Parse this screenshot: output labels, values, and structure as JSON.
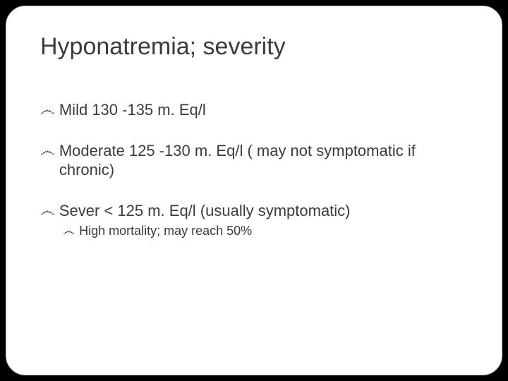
{
  "slide": {
    "title": "Hyponatremia; severity",
    "bullet_glyph": "෴",
    "background_color": "#000000",
    "frame_border_color": "#c9c5b8",
    "text_color": "#3b3b3b",
    "title_fontsize": 34,
    "body_fontsize": 22,
    "sub_fontsize": 18,
    "items": {
      "mild": "Mild 130 -135 m. Eq/l",
      "moderate_line1": "Moderate 125 -130 m. Eq/l ( may not symptomatic if",
      "moderate_line2": "chronic)",
      "severe": "Sever < 125 m. Eq/l (usually symptomatic)",
      "severe_sub": "High mortality; may reach 50%"
    }
  }
}
